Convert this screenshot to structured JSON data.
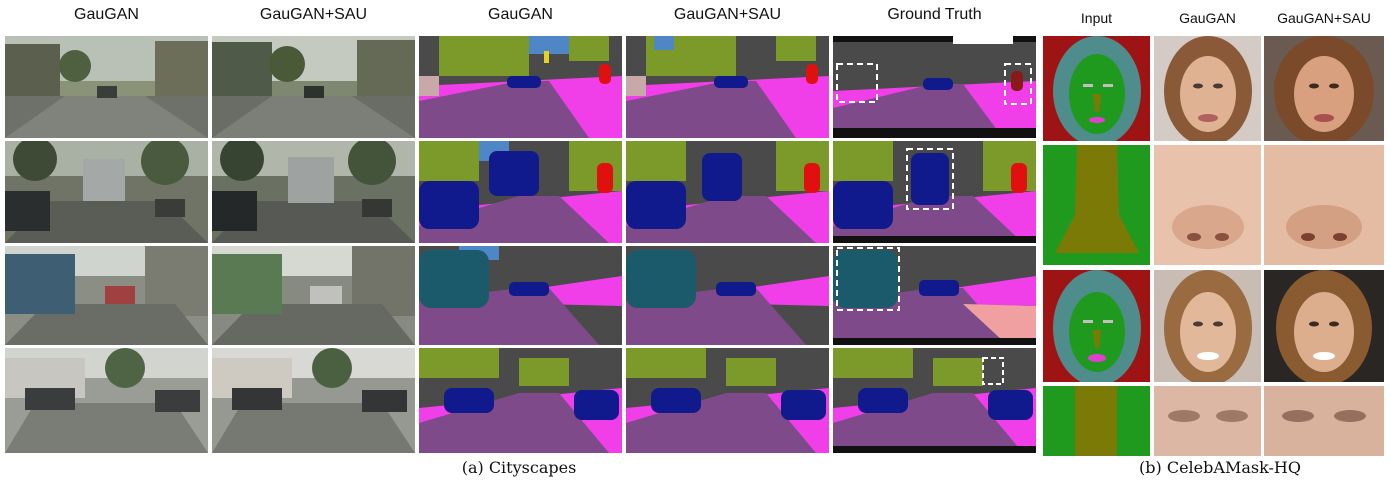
{
  "figure": {
    "left_headers": [
      "GauGAN",
      "GauGAN+SAU",
      "GauGAN",
      "GauGAN+SAU",
      "Ground Truth"
    ],
    "right_headers": [
      "Input",
      "GauGAN",
      "GauGAN+SAU"
    ],
    "caption_left": "(a) Cityscapes",
    "caption_right": "(b) CelebAMask-HQ"
  },
  "colors": {
    "road": "#7f4a8a",
    "sidewalk": "#f03fe8",
    "building": "#4a4a4a",
    "vegetation": "#7b9a2a",
    "sky": "#4f86c6",
    "car": "#101a8c",
    "truck": "#1b5a6a",
    "person": "#e01010",
    "sign": "#e6d21a",
    "pole": "#9a9a9a",
    "face_bg": "#9e1414",
    "face_hair": "#4f8c8c",
    "face_skin": "#1f9a1f",
    "face_nose": "#7c7a06"
  }
}
